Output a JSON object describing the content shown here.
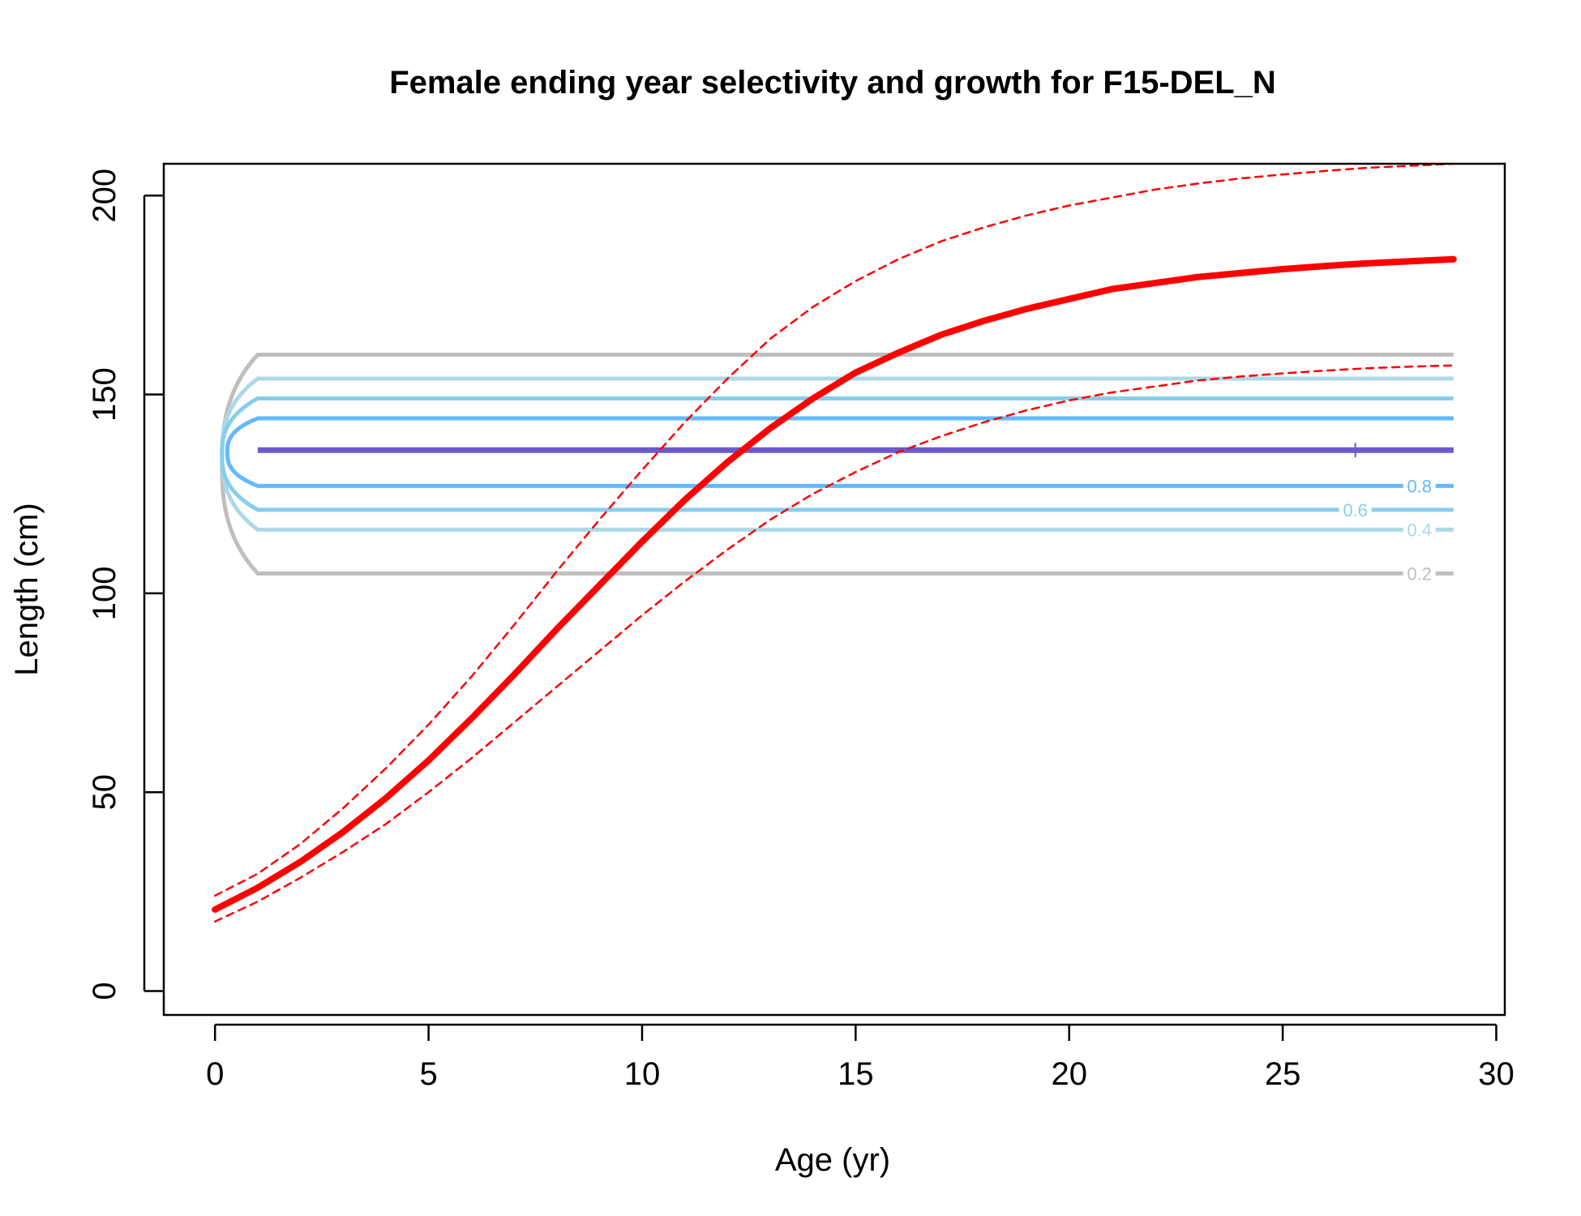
{
  "chart_data": {
    "type": "line",
    "title": "Female ending year selectivity and growth for F15-DEL_N",
    "xlabel": "Age (yr)",
    "ylabel": "Length (cm)",
    "xlim": [
      -1.2,
      30.2
    ],
    "ylim": [
      -6,
      208
    ],
    "xticks": [
      0,
      5,
      10,
      15,
      20,
      25,
      30
    ],
    "yticks": [
      0,
      50,
      100,
      150,
      200
    ],
    "tick_labels_x": [
      "0",
      "5",
      "10",
      "15",
      "20",
      "25",
      "30"
    ],
    "tick_labels_y": [
      "0",
      "50",
      "100",
      "150",
      "200"
    ],
    "grid": false,
    "legend": "none",
    "series": [
      {
        "role": "mean-growth",
        "color": "#ff0000",
        "style": "solid-thick",
        "points": [
          [
            0,
            20.5
          ],
          [
            1,
            26
          ],
          [
            2,
            32.5
          ],
          [
            3,
            40
          ],
          [
            4,
            48.5
          ],
          [
            5,
            58
          ],
          [
            6,
            68.5
          ],
          [
            7,
            79.5
          ],
          [
            8,
            91
          ],
          [
            9,
            102
          ],
          [
            10,
            113
          ],
          [
            11,
            123.5
          ],
          [
            12,
            133
          ],
          [
            13,
            141.5
          ],
          [
            14,
            149
          ],
          [
            15,
            155.5
          ],
          [
            16,
            160.5
          ],
          [
            17,
            165
          ],
          [
            18,
            168.5
          ],
          [
            19,
            171.5
          ],
          [
            20,
            174
          ],
          [
            21,
            176.5
          ],
          [
            22,
            178
          ],
          [
            23,
            179.5
          ],
          [
            24,
            180.5
          ],
          [
            25,
            181.5
          ],
          [
            26,
            182.3
          ],
          [
            27,
            183
          ],
          [
            28,
            183.5
          ],
          [
            29,
            184
          ]
        ]
      },
      {
        "role": "upper-interval",
        "color": "#ff0000",
        "style": "dashed",
        "points": [
          [
            0,
            24
          ],
          [
            1,
            29.5
          ],
          [
            2,
            37
          ],
          [
            3,
            46
          ],
          [
            4,
            56
          ],
          [
            5,
            67
          ],
          [
            6,
            79
          ],
          [
            7,
            92
          ],
          [
            8,
            105.5
          ],
          [
            9,
            118.5
          ],
          [
            10,
            131
          ],
          [
            11,
            143
          ],
          [
            12,
            154
          ],
          [
            13,
            164
          ],
          [
            14,
            172
          ],
          [
            15,
            178.5
          ],
          [
            16,
            184
          ],
          [
            17,
            188.5
          ],
          [
            18,
            192
          ],
          [
            19,
            195
          ],
          [
            20,
            197.5
          ],
          [
            21,
            199.5
          ],
          [
            22,
            201.5
          ],
          [
            23,
            203
          ],
          [
            24,
            204.3
          ],
          [
            25,
            205.3
          ],
          [
            26,
            206.2
          ],
          [
            27,
            207
          ],
          [
            28,
            207.5
          ],
          [
            29,
            208
          ]
        ]
      },
      {
        "role": "lower-interval",
        "color": "#ff0000",
        "style": "dashed",
        "points": [
          [
            0,
            17.5
          ],
          [
            1,
            22.5
          ],
          [
            2,
            28.5
          ],
          [
            3,
            35
          ],
          [
            4,
            42
          ],
          [
            5,
            50
          ],
          [
            6,
            58.5
          ],
          [
            7,
            67.5
          ],
          [
            8,
            76.5
          ],
          [
            9,
            85.5
          ],
          [
            10,
            94.5
          ],
          [
            11,
            103
          ],
          [
            12,
            111
          ],
          [
            13,
            118.5
          ],
          [
            14,
            125
          ],
          [
            15,
            130.5
          ],
          [
            16,
            135.5
          ],
          [
            17,
            139.5
          ],
          [
            18,
            143
          ],
          [
            19,
            146
          ],
          [
            20,
            148.5
          ],
          [
            21,
            150.5
          ],
          [
            22,
            152
          ],
          [
            23,
            153.5
          ],
          [
            24,
            154.5
          ],
          [
            25,
            155.3
          ],
          [
            26,
            156
          ],
          [
            27,
            156.6
          ],
          [
            28,
            157
          ],
          [
            29,
            157.3
          ]
        ]
      }
    ],
    "selectivity_contours": [
      {
        "level": 0.2,
        "label": "0.2",
        "color": "#bebebe",
        "lower": 105,
        "upper": 160,
        "label_at_lower": true
      },
      {
        "level": 0.4,
        "label": "0.4",
        "color": "#add8e6",
        "lower": 116,
        "upper": 154,
        "label_at_lower": true
      },
      {
        "level": 0.6,
        "label": "0.6",
        "color": "#87ceeb",
        "lower": 121,
        "upper": 149,
        "label_at_lower": true
      },
      {
        "level": 0.8,
        "label": "0.8",
        "color": "#63b8ff",
        "lower": 127,
        "upper": 144,
        "label_at_lower": true
      },
      {
        "level": 1.0,
        "label": "",
        "color": "#6a5acd",
        "lower": 136,
        "upper": 136,
        "label_at_lower": false
      }
    ],
    "selectivity_age_range": [
      1,
      29
    ],
    "peak_marker": {
      "x": 26.7,
      "y": 136,
      "symbol": "+",
      "color": "#6a5acd"
    }
  }
}
